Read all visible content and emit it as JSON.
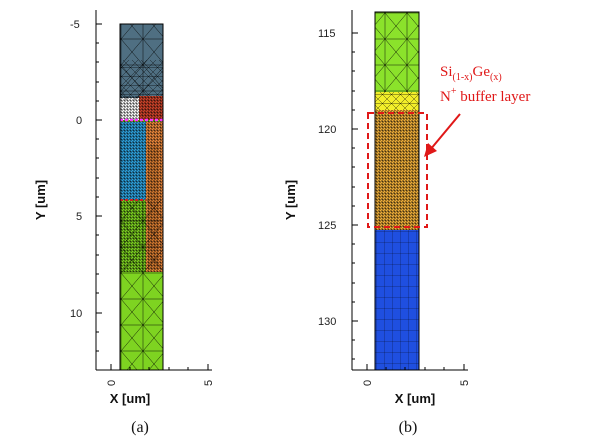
{
  "figure_a": {
    "caption": "(a)",
    "xlabel": "X [um]",
    "ylabel": "Y [um]",
    "x_ticks": [
      "0",
      "5"
    ],
    "y_ticks": [
      "-5",
      "0",
      "5",
      "10"
    ],
    "x_range": [
      -1,
      6
    ],
    "y_range": [
      -6,
      13
    ],
    "y_inverted": true,
    "regions": [
      {
        "name": "top-oxide",
        "color": "#4f6f82"
      },
      {
        "name": "gate-region",
        "color": "#d0442a"
      },
      {
        "name": "left-diffusion",
        "color": "#2ea3df"
      },
      {
        "name": "right-diffusion",
        "color": "#f08a3c"
      },
      {
        "name": "substrate",
        "color": "#7ed321"
      }
    ],
    "marker_lines": [
      {
        "y": 0,
        "color": "#ff33ff"
      },
      {
        "y": 4,
        "color": "#cc2222"
      }
    ]
  },
  "figure_b": {
    "caption": "(b)",
    "xlabel": "X [um]",
    "ylabel": "Y [um]",
    "x_ticks": [
      "0",
      "5"
    ],
    "y_ticks": [
      "115",
      "120",
      "125",
      "130"
    ],
    "x_range": [
      -1,
      6
    ],
    "y_range": [
      114,
      133
    ],
    "y_inverted": true,
    "regions": [
      {
        "name": "upper-drift",
        "color": "#8be22b"
      },
      {
        "name": "sige-buffer",
        "color": "#f2b13a"
      },
      {
        "name": "yellow-transition",
        "color": "#f2ee2a"
      },
      {
        "name": "substrate",
        "color": "#1f4fe0"
      }
    ],
    "annotation": {
      "line1_base": "Si",
      "line1_sub1": "(1-x)",
      "line1_mid": "Ge",
      "line1_sub2": "(x)",
      "line2_base": "N",
      "line2_sup": "+",
      "line2_rest": " buffer layer",
      "color": "#e01818"
    }
  }
}
